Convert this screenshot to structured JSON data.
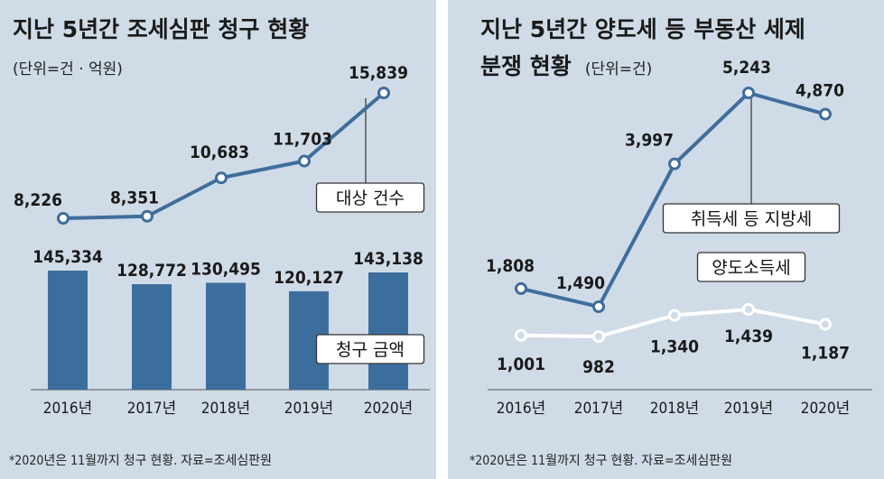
{
  "colors": {
    "panel_background": "#cfdbe7",
    "series_blue": "#3f6d9c",
    "bar_fill": "#3c6e9d",
    "series_white": "#ffffff",
    "text": "#1a1a1a"
  },
  "chart_data": [
    {
      "type": "bar+line",
      "title": "지난 5년간 조세심판 청구 현황",
      "unit_note": "(단위=건 · 억원)",
      "categories": [
        "2016년",
        "2017년",
        "2018년",
        "2019년",
        "2020년"
      ],
      "series": [
        {
          "name": "대상 건수",
          "type": "line",
          "values": [
            8226,
            8351,
            10683,
            11703,
            15839
          ],
          "labels": [
            "8,226",
            "8,351",
            "10,683",
            "11,703",
            "15,839"
          ]
        },
        {
          "name": "청구 금액",
          "type": "bar",
          "values": [
            145334,
            128772,
            130495,
            120127,
            143138
          ],
          "labels": [
            "145,334",
            "128,772",
            "130,495",
            "120,127",
            "143,138"
          ]
        }
      ],
      "footnote": "*2020년은 11월까지 청구 현황. 자료=조세심판원"
    },
    {
      "type": "line",
      "title_line1": "지난 5년간 양도세 등 부동산 세제",
      "title_line2": "분쟁 현황",
      "unit_note": "(단위=건)",
      "categories": [
        "2016년",
        "2017년",
        "2018년",
        "2019년",
        "2020년"
      ],
      "series": [
        {
          "name": "취득세 등 지방세",
          "values": [
            1808,
            1490,
            3997,
            5243,
            4870
          ],
          "labels": [
            "1,808",
            "1,490",
            "3,997",
            "5,243",
            "4,870"
          ]
        },
        {
          "name": "양도소득세",
          "values": [
            1001,
            982,
            1340,
            1439,
            1187
          ],
          "labels": [
            "1,001",
            "982",
            "1,340",
            "1,439",
            "1,187"
          ]
        }
      ],
      "footnote": "*2020년은 11월까지 청구 현황. 자료=조세심판원"
    }
  ]
}
